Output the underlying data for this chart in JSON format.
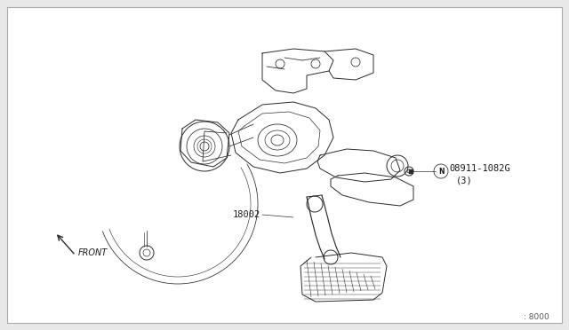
{
  "background_color": "#e8e8e8",
  "inner_background": "#ffffff",
  "border_color": "#aaaaaa",
  "line_color": "#2a2a2a",
  "label_18002": "18002",
  "label_part": "08911-1082G",
  "label_part2": "(3)",
  "label_front": "FRONT",
  "label_page": ": 8000",
  "text_color": "#1a1a1a",
  "N_label": "N"
}
